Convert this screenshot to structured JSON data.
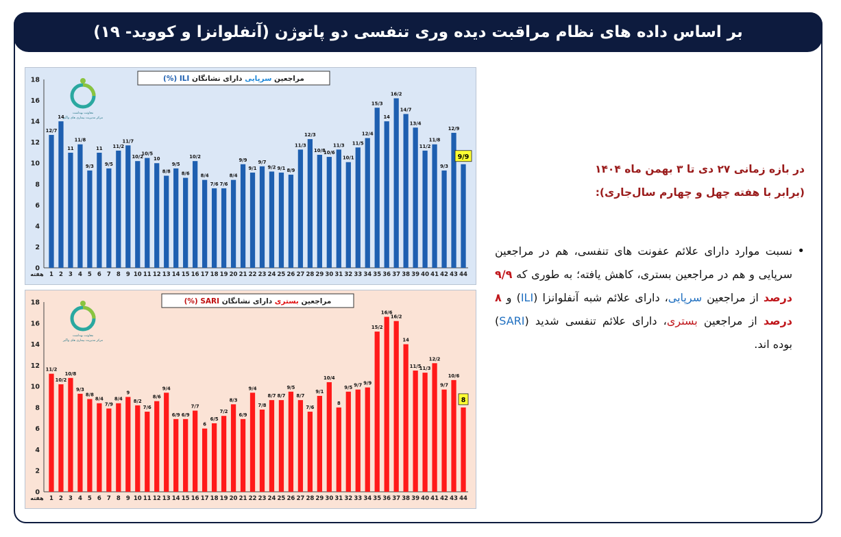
{
  "header": {
    "title": "بر اساس داده های نظام مراقبت دیده وری تنفسی دو پاتوژن (آنفلوانزا و کووید- ۱۹)"
  },
  "summary": {
    "period_line1": "در بازه زمانی ۲۷ دی تا ۳ بهمن ماه ۱۴۰۴",
    "period_line2": "(برابر با هفته چهل و چهارم سال‌جاری):",
    "bullet": {
      "t1": "نسبت موارد دارای علائم عفونت های تنفسی، هم در مراجعین سرپایی و هم در مراجعین بستری، کاهش یافته؛ به طوری که ",
      "v1": "۹/۹ درصد",
      "t2": " از مراجعین ",
      "w1": "سرپایی",
      "t3": "، دارای علائم شبه آنفلوانزا (",
      "w2": "ILI",
      "t4": ") و ",
      "v2": "۸ درصد",
      "t5": " از مراجعین ",
      "w3": "بستری",
      "t6": "، دارای علائم تنفسی شدید (",
      "w4": "SARI",
      "t7": ") بوده اند."
    }
  },
  "chart_data": [
    {
      "type": "bar",
      "title_prefix": "مراجعین",
      "title_colored": "سرپایی",
      "title_suffix": "دارای نشانگان",
      "title_code": "ILI (%)",
      "xlabel": "هفته",
      "ylim": [
        0,
        18
      ],
      "yticks": [
        "0",
        "2",
        "4",
        "6",
        "8",
        "10",
        "12",
        "14",
        "16",
        "18"
      ],
      "categories": [
        "1",
        "2",
        "3",
        "4",
        "5",
        "6",
        "7",
        "8",
        "9",
        "10",
        "11",
        "12",
        "13",
        "14",
        "15",
        "16",
        "17",
        "18",
        "19",
        "20",
        "21",
        "22",
        "23",
        "24",
        "25",
        "26",
        "27",
        "28",
        "29",
        "30",
        "31",
        "32",
        "33",
        "34",
        "35",
        "36",
        "37",
        "38",
        "39",
        "40",
        "41",
        "42",
        "43",
        "44"
      ],
      "values": [
        12.7,
        14,
        11,
        11.8,
        9.3,
        11,
        9.5,
        11.2,
        11.7,
        10.2,
        10.5,
        10,
        8.8,
        9.5,
        8.6,
        10.2,
        8.4,
        7.6,
        7.6,
        8.4,
        9.9,
        9.1,
        9.7,
        9.2,
        9.1,
        8.9,
        11.3,
        12.3,
        10.8,
        10.6,
        11.3,
        10.1,
        11.5,
        12.4,
        15.3,
        14,
        16.2,
        14.7,
        13.4,
        11.2,
        11.8,
        9.3,
        12.9,
        9.9
      ],
      "labels": [
        "12/7",
        "14",
        "11",
        "11/8",
        "9/3",
        "11",
        "9/5",
        "11/2",
        "11/7",
        "10/2",
        "10/5",
        "10",
        "8/8",
        "9/5",
        "8/6",
        "10/2",
        "8/4",
        "7/6",
        "7/6",
        "8/4",
        "9/9",
        "9/1",
        "9/7",
        "9/2",
        "9/1",
        "8/9",
        "11/3",
        "12/3",
        "10/8",
        "10/6",
        "11/3",
        "10/1",
        "11/5",
        "12/4",
        "15/3",
        "14",
        "16/2",
        "14/7",
        "13/4",
        "11/2",
        "11/8",
        "9/3",
        "12/9",
        "9/9"
      ],
      "last_label_highlight": true,
      "colors": {
        "bar": "#1e5fb0",
        "background": "#dbe7f6",
        "plot": "#dbe7f6",
        "highlight": "#ffff33"
      },
      "logo_text": [
        "معاونت بهداشت",
        "مرکز مدیریت بیماری های واگیر"
      ]
    },
    {
      "type": "bar",
      "title_prefix": "مراجعین",
      "title_colored": "بستری",
      "title_suffix": "دارای نشانگان",
      "title_code": "SARI (%)",
      "xlabel": "هفته",
      "ylim": [
        0,
        18
      ],
      "yticks": [
        "0",
        "2",
        "4",
        "6",
        "8",
        "10",
        "12",
        "14",
        "16",
        "18"
      ],
      "categories": [
        "1",
        "2",
        "3",
        "4",
        "5",
        "6",
        "7",
        "8",
        "9",
        "10",
        "11",
        "12",
        "13",
        "14",
        "15",
        "16",
        "17",
        "18",
        "19",
        "20",
        "21",
        "22",
        "23",
        "24",
        "25",
        "26",
        "27",
        "28",
        "29",
        "30",
        "31",
        "32",
        "33",
        "34",
        "35",
        "36",
        "37",
        "38",
        "39",
        "40",
        "41",
        "42",
        "43",
        "44"
      ],
      "values": [
        11.2,
        10.2,
        10.8,
        9.3,
        8.8,
        8.4,
        7.9,
        8.4,
        9,
        8.2,
        7.6,
        8.6,
        9.4,
        6.9,
        6.9,
        7.7,
        6,
        6.5,
        7.2,
        8.3,
        6.9,
        9.4,
        7.8,
        8.7,
        8.7,
        9.5,
        8.7,
        7.6,
        9.1,
        10.4,
        8,
        9.5,
        9.7,
        9.9,
        15.2,
        16.6,
        16.2,
        14,
        11.5,
        11.3,
        12.2,
        9.7,
        10.6,
        8
      ],
      "labels": [
        "11/2",
        "10/2",
        "10/8",
        "9/3",
        "8/8",
        "8/4",
        "7/9",
        "8/4",
        "9",
        "8/2",
        "7/6",
        "8/6",
        "9/4",
        "6/9",
        "6/9",
        "7/7",
        "6",
        "6/5",
        "7/2",
        "8/3",
        "6/9",
        "9/4",
        "7/8",
        "8/7",
        "8/7",
        "9/5",
        "8/7",
        "7/6",
        "9/1",
        "10/4",
        "8",
        "9/5",
        "9/7",
        "9/9",
        "15/2",
        "16/6",
        "16/2",
        "14",
        "11/5",
        "11/3",
        "12/2",
        "9/7",
        "10/6",
        "8"
      ],
      "last_label_highlight": true,
      "colors": {
        "bar": "#ff1a1a",
        "background": "#fbe3d6",
        "plot": "#fbe3d6",
        "highlight": "#ffff33"
      },
      "logo_text": [
        "معاونت بهداشت",
        "مرکز مدیریت بیماری های واگیر"
      ]
    }
  ]
}
